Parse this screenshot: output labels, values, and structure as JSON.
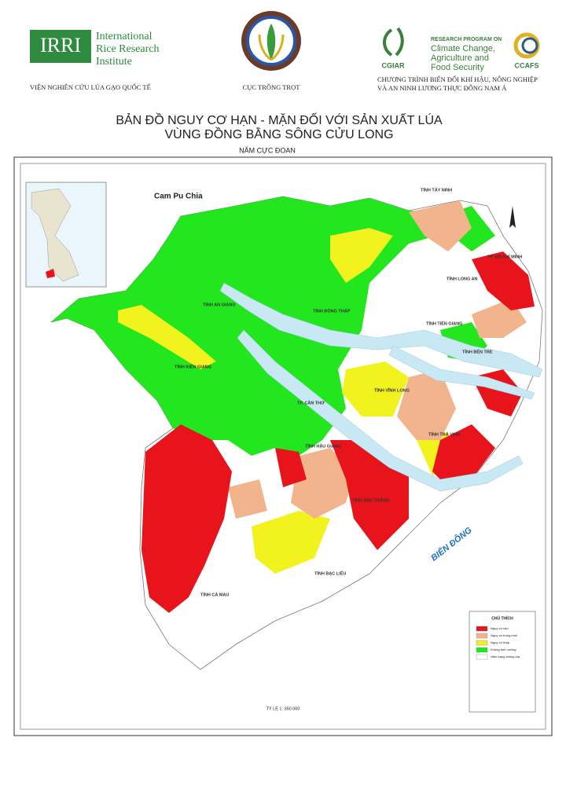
{
  "header": {
    "irri_mark": "IRRI",
    "irri_name": [
      "International",
      "Rice Research",
      "Institute"
    ],
    "irri_caption": "VIỆN NGHIÊN CỨU LÚA GẠO QUỐC TẾ",
    "ministry_caption": "CỤC TRỒNG TRỌT",
    "cgiar": "CGIAR",
    "program_heading": "RESEARCH PROGRAM ON",
    "program_name": [
      "Climate Change,",
      "Agriculture and",
      "Food Security"
    ],
    "ccafs": "CCAFS",
    "program_caption": [
      "CHƯƠNG TRÌNH BIẾN ĐỔI KHÍ HẬU, NÔNG NGHIỆP",
      "VÀ AN NINH LƯƠNG THỰC ĐÔNG NAM Á"
    ]
  },
  "title": {
    "line1": "BẢN ĐỒ NGUY CƠ HẠN - MẶN ĐỐI VỚI SẢN XUẤT LÚA",
    "line2": "VÙNG ĐỒNG BẰNG SÔNG CỬU LONG",
    "subtitle": "NĂM CỰC ĐOAN"
  },
  "map": {
    "labels": [
      "Cam Pu Chia",
      "TỈNH TÂY NINH",
      "TP. HỒ CHÍ MINH",
      "TỈNH LONG AN",
      "TỈNH TIỀN GIANG",
      "TỈNH BẾN TRE",
      "TỈNH ĐỒNG THÁP",
      "TỈNH AN GIANG",
      "TỈNH KIÊN GIANG",
      "TỈNH VĨNH LONG",
      "TP. CẦN THƠ",
      "TỈNH TRÀ VINH",
      "TỈNH HẬU GIANG",
      "TỈNH SÓC TRĂNG",
      "TỈNH BẠC LIÊU",
      "TỈNH CÀ MAU",
      "BIỂN ĐÔNG"
    ],
    "scale": "TỶ LỆ 1: 350.000"
  },
  "legend": {
    "title": "CHÚ THÍCH",
    "items": [
      {
        "label": "Nguy cơ cao",
        "color": "#e8141c"
      },
      {
        "label": "Nguy cơ trung bình",
        "color": "#f2b48c"
      },
      {
        "label": "Nguy cơ thấp",
        "color": "#f2f21e"
      },
      {
        "label": "Không ảnh hưởng",
        "color": "#22e61e"
      },
      {
        "label": "Hiện trạng không lúa",
        "color": "#ffffff"
      }
    ]
  }
}
